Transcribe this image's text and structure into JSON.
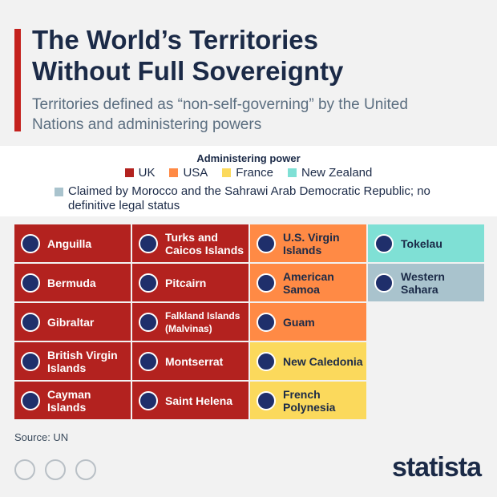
{
  "header": {
    "title": "The World’s Territories Without Full Sovereignty",
    "subtitle": "Territories defined as “non-self-governing” by the United Nations and administering powers"
  },
  "legend": {
    "title": "Administering power",
    "items": [
      {
        "label": "UK",
        "color": "#b3221f"
      },
      {
        "label": "USA",
        "color": "#ff8a45"
      },
      {
        "label": "France",
        "color": "#fbd95c"
      },
      {
        "label": "New Zealand",
        "color": "#7fe0d5"
      },
      {
        "label": "Claimed by Morocco and the Sahrawi Arab Democratic Republic; no definitive legal status",
        "color": "#a9c3cd"
      }
    ]
  },
  "columns": [
    {
      "tiles": [
        {
          "label": "Anguilla",
          "group": 0
        },
        {
          "label": "Bermuda",
          "group": 0
        },
        {
          "label": "Gibraltar",
          "group": 0
        },
        {
          "label": "British Virgin Islands",
          "group": 0
        },
        {
          "label": "Cayman Islands",
          "group": 0
        }
      ]
    },
    {
      "tiles": [
        {
          "label": "Turks and Caicos Islands",
          "group": 0
        },
        {
          "label": "Pitcairn",
          "group": 0
        },
        {
          "label": "Falkland Islands (Malvinas)",
          "group": 0
        },
        {
          "label": "Montserrat",
          "group": 0
        },
        {
          "label": "Saint Helena",
          "group": 0
        }
      ]
    },
    {
      "tiles": [
        {
          "label": "U.S. Virgin Islands",
          "group": 1
        },
        {
          "label": "American Samoa",
          "group": 1
        },
        {
          "label": "Guam",
          "group": 1
        },
        {
          "label": "New Caledonia",
          "group": 2
        },
        {
          "label": "French Polynesia",
          "group": 2
        }
      ]
    },
    {
      "tiles": [
        {
          "label": "Tokelau",
          "group": 3
        },
        {
          "label": "Western Sahara",
          "group": 4
        }
      ]
    }
  ],
  "source": "Source: UN",
  "brand": "statista"
}
